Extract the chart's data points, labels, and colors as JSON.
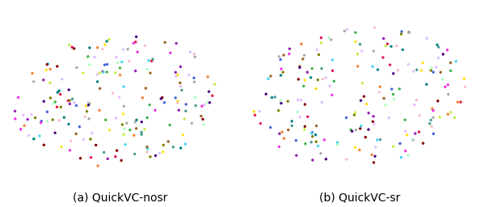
{
  "title_a": "(a) QuickVC-nosr",
  "title_b": "(b) QuickVC-sr",
  "title_fontsize": 10,
  "marker_size": 6,
  "background_color": "#ffffff",
  "colors": [
    "#e6194b",
    "#3cb44b",
    "#f58231",
    "#4363d8",
    "#911eb4",
    "#42d4f4",
    "#f032e6",
    "#808000",
    "#9A6324",
    "#469990",
    "#a9a9a9",
    "#800000",
    "#dcbeff",
    "#aaffc3",
    "#ffe119",
    "#bfef45",
    "#fabebe",
    "#008080",
    "#e6beff",
    "#4b0082",
    "#696969",
    "#556b2f",
    "#8b4513",
    "#483d8b",
    "#2e8b57"
  ],
  "n_points": 200,
  "n_colors": 20,
  "figsize": [
    5.94,
    2.56
  ],
  "dpi": 100,
  "seed_a": 7,
  "seed_b": 13
}
